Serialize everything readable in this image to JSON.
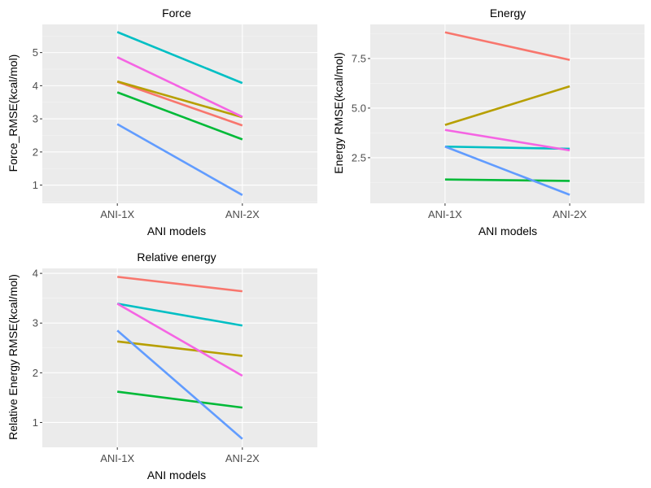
{
  "chart_data": [
    {
      "type": "line",
      "title": "Force",
      "xlabel": "ANI models",
      "ylabel": "Force_RMSE(kcal/mol)",
      "categories": [
        "ANI-1X",
        "ANI-2X"
      ],
      "ylim": [
        0.45,
        5.85
      ],
      "yticks": [
        1,
        2,
        3,
        4,
        5
      ],
      "grid": true,
      "series": [
        {
          "color": "#F8766D",
          "values": [
            4.12,
            2.8
          ]
        },
        {
          "color": "#B79F00",
          "values": [
            4.13,
            3.05
          ]
        },
        {
          "color": "#00BA38",
          "values": [
            3.8,
            2.38
          ]
        },
        {
          "color": "#00BFC4",
          "values": [
            5.62,
            4.08
          ]
        },
        {
          "color": "#619CFF",
          "values": [
            2.84,
            0.7
          ]
        },
        {
          "color": "#F564E3",
          "values": [
            4.86,
            3.06
          ]
        }
      ]
    },
    {
      "type": "line",
      "title": "Energy",
      "xlabel": "ANI models",
      "ylabel": "Energy RMSE(kcal/mol)",
      "categories": [
        "ANI-1X",
        "ANI-2X"
      ],
      "ylim": [
        0.2,
        9.22
      ],
      "yticks": [
        2.5,
        5.0,
        7.5
      ],
      "ytick_labels": [
        "2.5",
        "5.0",
        "7.5"
      ],
      "grid": true,
      "series": [
        {
          "color": "#F8766D",
          "values": [
            8.82,
            7.43
          ]
        },
        {
          "color": "#B79F00",
          "values": [
            4.15,
            6.1
          ]
        },
        {
          "color": "#00BA38",
          "values": [
            1.4,
            1.33
          ]
        },
        {
          "color": "#00BFC4",
          "values": [
            3.06,
            2.95
          ]
        },
        {
          "color": "#619CFF",
          "values": [
            3.06,
            0.63
          ]
        },
        {
          "color": "#F564E3",
          "values": [
            3.9,
            2.87
          ]
        }
      ]
    },
    {
      "type": "line",
      "title": "Relative energy",
      "xlabel": "ANI models",
      "ylabel": "Relative Energy RMSE(kcal/mol)",
      "categories": [
        "ANI-1X",
        "ANI-2X"
      ],
      "ylim": [
        0.5,
        4.1
      ],
      "yticks": [
        1,
        2,
        3,
        4
      ],
      "grid": true,
      "series": [
        {
          "color": "#F8766D",
          "values": [
            3.93,
            3.64
          ]
        },
        {
          "color": "#B79F00",
          "values": [
            2.63,
            2.34
          ]
        },
        {
          "color": "#00BA38",
          "values": [
            1.62,
            1.3
          ]
        },
        {
          "color": "#00BFC4",
          "values": [
            3.39,
            2.95
          ]
        },
        {
          "color": "#619CFF",
          "values": [
            2.85,
            0.67
          ]
        },
        {
          "color": "#F564E3",
          "values": [
            3.39,
            1.94
          ]
        }
      ]
    }
  ]
}
